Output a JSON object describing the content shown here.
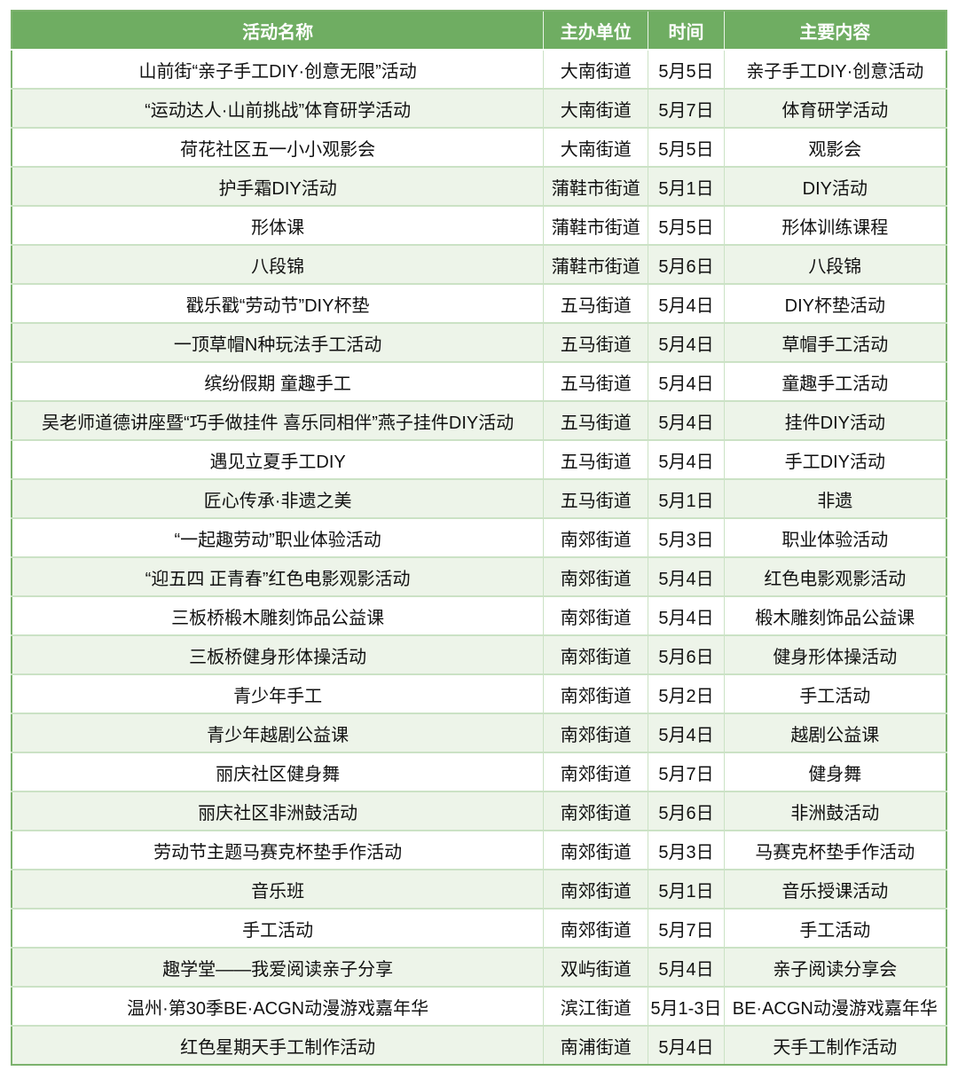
{
  "theme": {
    "header_bg": "#6FAD62",
    "stripe_bg": "#EDF4E9",
    "outer_border": "#7CB26E",
    "grid_line": "#CBE2C5",
    "header_text": "#FFFFFF",
    "body_text": "#111111"
  },
  "table": {
    "columns": [
      {
        "key": "name",
        "label": "活动名称"
      },
      {
        "key": "organizer",
        "label": "主办单位"
      },
      {
        "key": "time",
        "label": "时间"
      },
      {
        "key": "content",
        "label": "主要内容"
      }
    ],
    "rows": [
      {
        "name": "山前街“亲子手工DIY·创意无限”活动",
        "organizer": "大南街道",
        "time": "5月5日",
        "content": "亲子手工DIY·创意活动"
      },
      {
        "name": "“运动达人·山前挑战”体育研学活动",
        "organizer": "大南街道",
        "time": "5月7日",
        "content": "体育研学活动"
      },
      {
        "name": "荷花社区五一小小观影会",
        "organizer": "大南街道",
        "time": "5月5日",
        "content": "观影会"
      },
      {
        "name": "护手霜DIY活动",
        "organizer": "蒲鞋市街道",
        "time": "5月1日",
        "content": "DIY活动"
      },
      {
        "name": "形体课",
        "organizer": "蒲鞋市街道",
        "time": "5月5日",
        "content": "形体训练课程"
      },
      {
        "name": "八段锦",
        "organizer": "蒲鞋市街道",
        "time": "5月6日",
        "content": "八段锦"
      },
      {
        "name": "戳乐戳“劳动节”DIY杯垫",
        "organizer": "五马街道",
        "time": "5月4日",
        "content": "DIY杯垫活动"
      },
      {
        "name": "一顶草帽N种玩法手工活动",
        "organizer": "五马街道",
        "time": "5月4日",
        "content": "草帽手工活动"
      },
      {
        "name": "缤纷假期 童趣手工",
        "organizer": "五马街道",
        "time": "5月4日",
        "content": "童趣手工活动"
      },
      {
        "name": "吴老师道德讲座暨“巧手做挂件 喜乐同相伴”燕子挂件DIY活动",
        "organizer": "五马街道",
        "time": "5月4日",
        "content": "挂件DIY活动"
      },
      {
        "name": "遇见立夏手工DIY",
        "organizer": "五马街道",
        "time": "5月4日",
        "content": "手工DIY活动"
      },
      {
        "name": "匠心传承·非遗之美",
        "organizer": "五马街道",
        "time": "5月1日",
        "content": "非遗"
      },
      {
        "name": "“一起趣劳动”职业体验活动",
        "organizer": "南郊街道",
        "time": "5月3日",
        "content": "职业体验活动"
      },
      {
        "name": "“迎五四 正青春”红色电影观影活动",
        "organizer": "南郊街道",
        "time": "5月4日",
        "content": "红色电影观影活动"
      },
      {
        "name": "三板桥椴木雕刻饰品公益课",
        "organizer": "南郊街道",
        "time": "5月4日",
        "content": "椴木雕刻饰品公益课"
      },
      {
        "name": "三板桥健身形体操活动",
        "organizer": "南郊街道",
        "time": "5月6日",
        "content": "健身形体操活动"
      },
      {
        "name": "青少年手工",
        "organizer": "南郊街道",
        "time": "5月2日",
        "content": "手工活动"
      },
      {
        "name": "青少年越剧公益课",
        "organizer": "南郊街道",
        "time": "5月4日",
        "content": "越剧公益课"
      },
      {
        "name": "丽庆社区健身舞",
        "organizer": "南郊街道",
        "time": "5月7日",
        "content": "健身舞"
      },
      {
        "name": "丽庆社区非洲鼓活动",
        "organizer": "南郊街道",
        "time": "5月6日",
        "content": "非洲鼓活动"
      },
      {
        "name": "劳动节主题马赛克杯垫手作活动",
        "organizer": "南郊街道",
        "time": "5月3日",
        "content": "马赛克杯垫手作活动"
      },
      {
        "name": "音乐班",
        "organizer": "南郊街道",
        "time": "5月1日",
        "content": "音乐授课活动"
      },
      {
        "name": "手工活动",
        "organizer": "南郊街道",
        "time": "5月7日",
        "content": "手工活动"
      },
      {
        "name": "趣学堂——我爱阅读亲子分享",
        "organizer": "双屿街道",
        "time": "5月4日",
        "content": "亲子阅读分享会"
      },
      {
        "name": "温州·第30季BE·ACGN动漫游戏嘉年华",
        "organizer": "滨江街道",
        "time": "5月1-3日",
        "content": "BE·ACGN动漫游戏嘉年华"
      },
      {
        "name": "红色星期天手工制作活动",
        "organizer": "南浦街道",
        "time": "5月4日",
        "content": "天手工制作活动"
      }
    ]
  }
}
